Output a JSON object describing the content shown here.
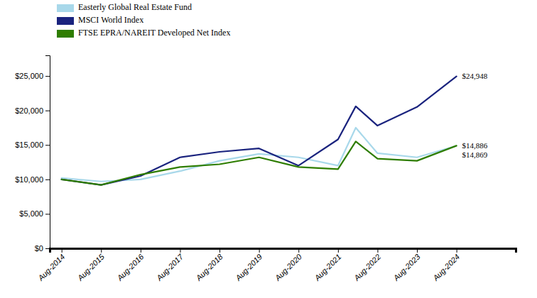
{
  "chart_data": {
    "type": "line",
    "x": [
      0,
      1,
      2,
      3,
      4,
      5,
      6,
      7,
      7.45,
      8,
      9,
      10
    ],
    "series": [
      {
        "name": "Easterly Global Real Estate Fund",
        "color": "#a8d8ea",
        "values": [
          10200,
          9700,
          10000,
          11200,
          12700,
          13700,
          13200,
          12000,
          17500,
          13800,
          13200,
          14869
        ]
      },
      {
        "name": "MSCI World Index",
        "color": "#1a237e",
        "values": [
          10000,
          9200,
          10500,
          13200,
          14000,
          14500,
          12000,
          15800,
          20600,
          17800,
          20500,
          24948
        ]
      },
      {
        "name": "FTSE EPRA/NAREIT Developed Net Index",
        "color": "#2e7d00",
        "values": [
          10000,
          9200,
          10700,
          11800,
          12200,
          13200,
          11800,
          11500,
          15500,
          13000,
          12700,
          14886
        ]
      }
    ],
    "xlim": [
      -0.3,
      11.5
    ],
    "xticks": [
      {
        "value": 0,
        "label": "Aug-2014"
      },
      {
        "value": 1,
        "label": "Aug-2015"
      },
      {
        "value": 2,
        "label": "Aug-2016"
      },
      {
        "value": 3,
        "label": "Aug-2017"
      },
      {
        "value": 4,
        "label": "Aug-2018"
      },
      {
        "value": 5,
        "label": "Aug-2019"
      },
      {
        "value": 6,
        "label": "Aug-2020"
      },
      {
        "value": 7,
        "label": "Aug-2021"
      },
      {
        "value": 8,
        "label": "Aug-2022"
      },
      {
        "value": 9,
        "label": "Aug-2023"
      },
      {
        "value": 10,
        "label": "Aug-2024"
      }
    ],
    "ylim": [
      0,
      28000
    ],
    "yticks": [
      {
        "value": 0,
        "label": "$0"
      },
      {
        "value": 5000,
        "label": "$5,000"
      },
      {
        "value": 10000,
        "label": "$10,000"
      },
      {
        "value": 15000,
        "label": "$15,000"
      },
      {
        "value": 20000,
        "label": "$20,000"
      },
      {
        "value": 25000,
        "label": "$25,000"
      }
    ],
    "annotations": [
      {
        "text": "$24,948",
        "x": 10,
        "y": 24948
      },
      {
        "text": "$14,886",
        "x": 10,
        "y": 14886
      },
      {
        "text": "$14,869",
        "x": 10,
        "y": 14869
      }
    ],
    "grid": false,
    "legend": "upper left"
  }
}
